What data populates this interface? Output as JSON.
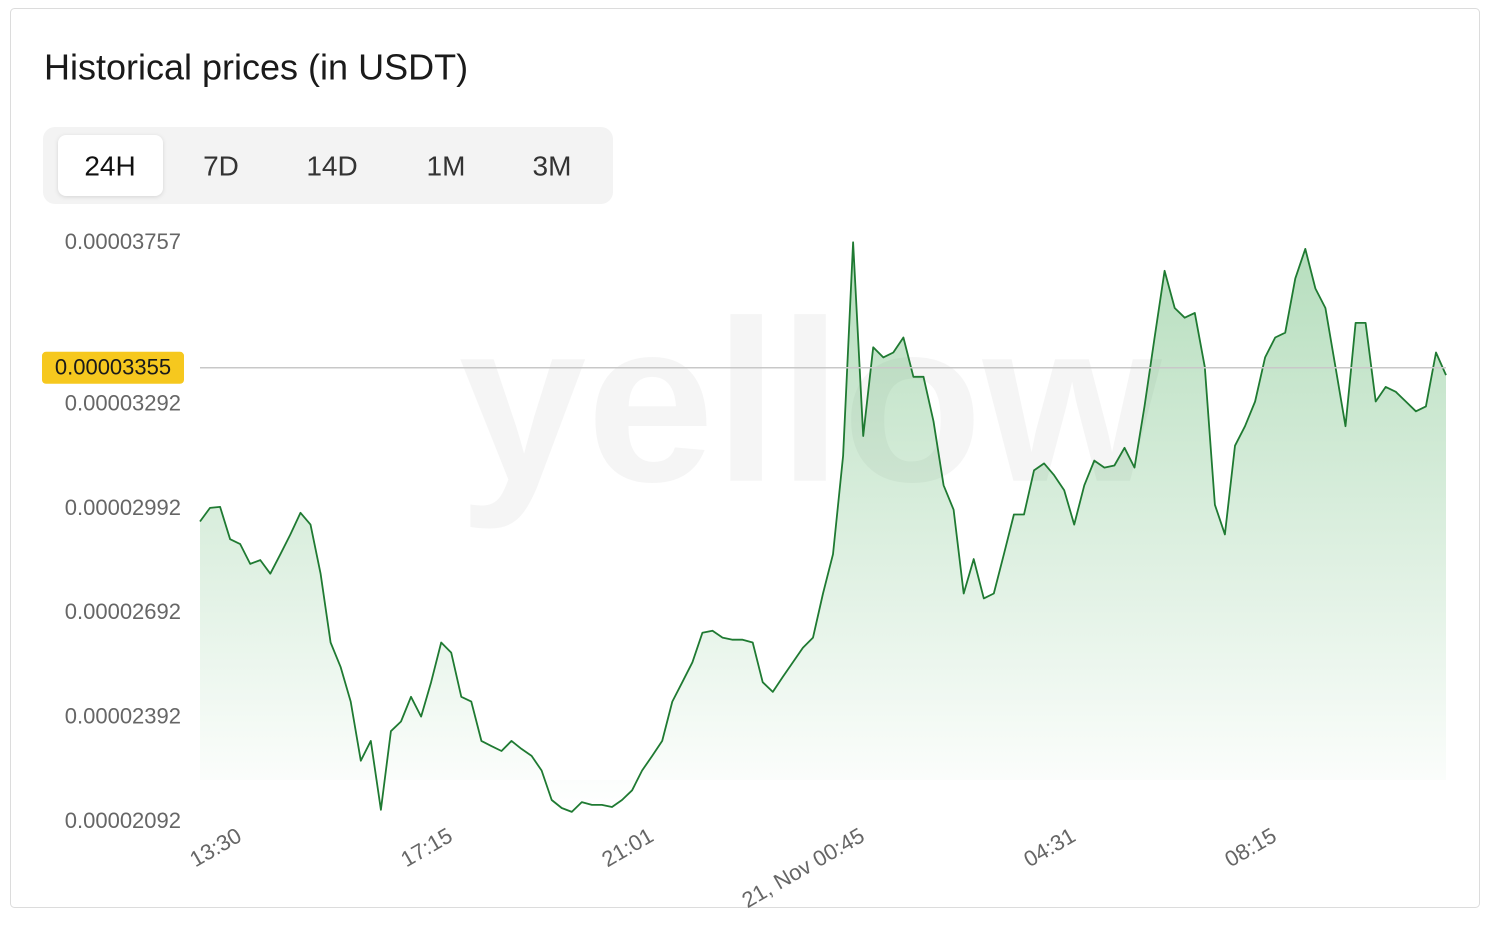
{
  "title": "Historical prices (in USDT)",
  "tabs": [
    "24H",
    "7D",
    "14D",
    "1M",
    "3M"
  ],
  "chart_data": {
    "type": "line",
    "watermark": "yellow",
    "color": "#1f7a32",
    "ylim": [
      2.092e-05,
      3.757e-05
    ],
    "yticks": [
      2.092e-05,
      2.392e-05,
      2.692e-05,
      2.992e-05,
      3.292e-05,
      3.757e-05
    ],
    "current_price": 3.355e-05,
    "xticks": [
      {
        "value": 4,
        "label": "13:30"
      },
      {
        "value": 25,
        "label": "17:15"
      },
      {
        "value": 45,
        "label": "21:01"
      },
      {
        "value": 66,
        "label": "21, Nov 00:45"
      },
      {
        "value": 87,
        "label": "04:31"
      },
      {
        "value": 107,
        "label": "08:15"
      }
    ],
    "values": [
      2.913e-05,
      2.952e-05,
      2.955e-05,
      2.862e-05,
      2.848e-05,
      2.791e-05,
      2.802e-05,
      2.763e-05,
      2.819e-05,
      2.876e-05,
      2.938e-05,
      2.904e-05,
      2.763e-05,
      2.565e-05,
      2.494e-05,
      2.395e-05,
      2.225e-05,
      2.282e-05,
      2.084e-05,
      2.31e-05,
      2.338e-05,
      2.409e-05,
      2.352e-05,
      2.451e-05,
      2.565e-05,
      2.536e-05,
      2.409e-05,
      2.395e-05,
      2.282e-05,
      2.267e-05,
      2.253e-05,
      2.282e-05,
      2.259e-05,
      2.239e-05,
      2.197e-05,
      2.112e-05,
      2.089e-05,
      2.078e-05,
      2.106e-05,
      2.098e-05,
      2.098e-05,
      2.092e-05,
      2.112e-05,
      2.14e-05,
      2.197e-05,
      2.239e-05,
      2.282e-05,
      2.395e-05,
      2.451e-05,
      2.508e-05,
      2.593e-05,
      2.599e-05,
      2.579e-05,
      2.573e-05,
      2.573e-05,
      2.565e-05,
      2.451e-05,
      2.423e-05,
      2.466e-05,
      2.508e-05,
      2.55e-05,
      2.579e-05,
      2.706e-05,
      2.819e-05,
      3.102e-05,
      3.716e-05,
      3.159e-05,
      3.414e-05,
      3.385e-05,
      3.399e-05,
      3.442e-05,
      3.329e-05,
      3.329e-05,
      3.201e-05,
      3.017e-05,
      2.947e-05,
      2.706e-05,
      2.805e-05,
      2.692e-05,
      2.706e-05,
      2.819e-05,
      2.933e-05,
      2.933e-05,
      3.06e-05,
      3.08e-05,
      3.046e-05,
      3.003e-05,
      2.904e-05,
      3.017e-05,
      3.088e-05,
      3.068e-05,
      3.074e-05,
      3.125e-05,
      3.068e-05,
      3.244e-05,
      3.442e-05,
      3.634e-05,
      3.527e-05,
      3.499e-05,
      3.513e-05,
      3.357e-05,
      2.961e-05,
      2.876e-05,
      3.131e-05,
      3.187e-05,
      3.258e-05,
      3.385e-05,
      3.442e-05,
      3.456e-05,
      3.612e-05,
      3.697e-05,
      3.583e-05,
      3.527e-05,
      3.357e-05,
      3.187e-05,
      3.484e-05,
      3.484e-05,
      3.258e-05,
      3.3e-05,
      3.286e-05,
      3.258e-05,
      3.23e-05,
      3.244e-05,
      3.399e-05,
      3.334e-05
    ]
  }
}
